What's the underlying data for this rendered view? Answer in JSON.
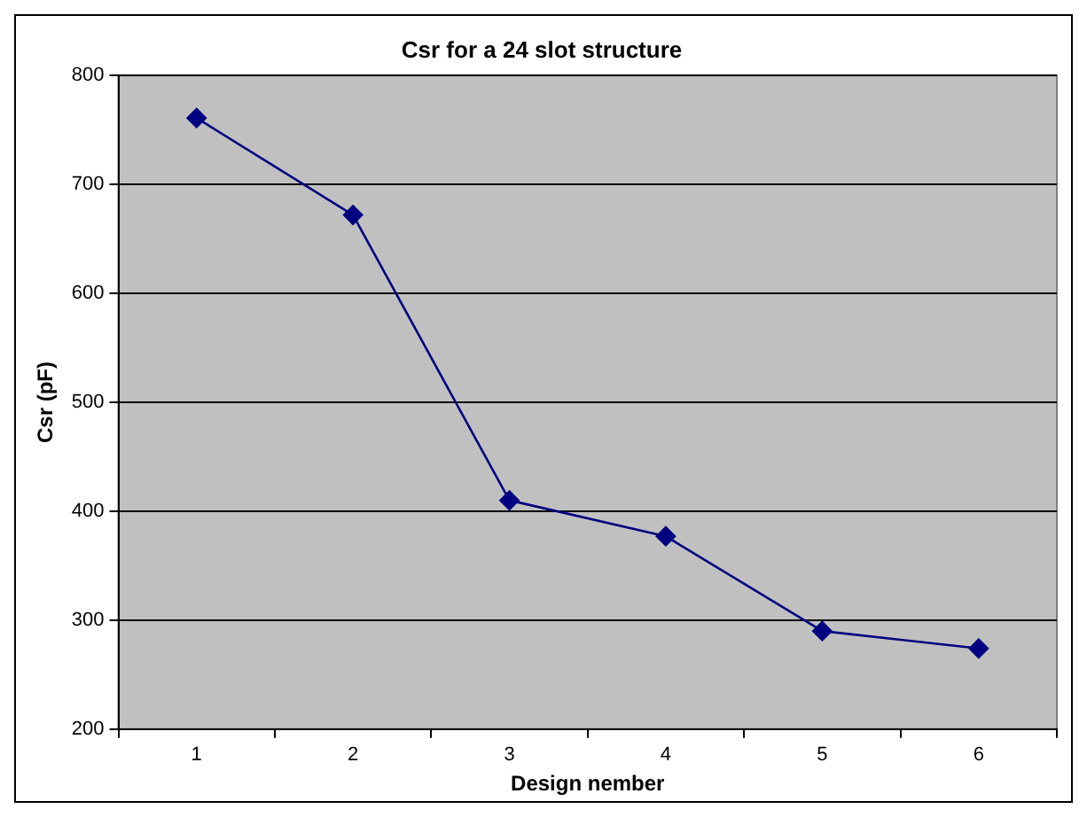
{
  "chart_data": {
    "type": "line",
    "title": "Csr for a 24 slot structure",
    "xlabel": "Design nember",
    "ylabel": "Csr (pF)",
    "categories": [
      "1",
      "2",
      "3",
      "4",
      "5",
      "6"
    ],
    "series": [
      {
        "color": "#000080",
        "values": [
          761,
          672,
          410,
          377,
          290,
          274
        ]
      }
    ],
    "ylim": [
      200,
      800
    ],
    "yticks": [
      200,
      300,
      400,
      500,
      600,
      700,
      800
    ],
    "grid": "y",
    "legend": false,
    "marker": "diamond",
    "line_style": "solid"
  }
}
